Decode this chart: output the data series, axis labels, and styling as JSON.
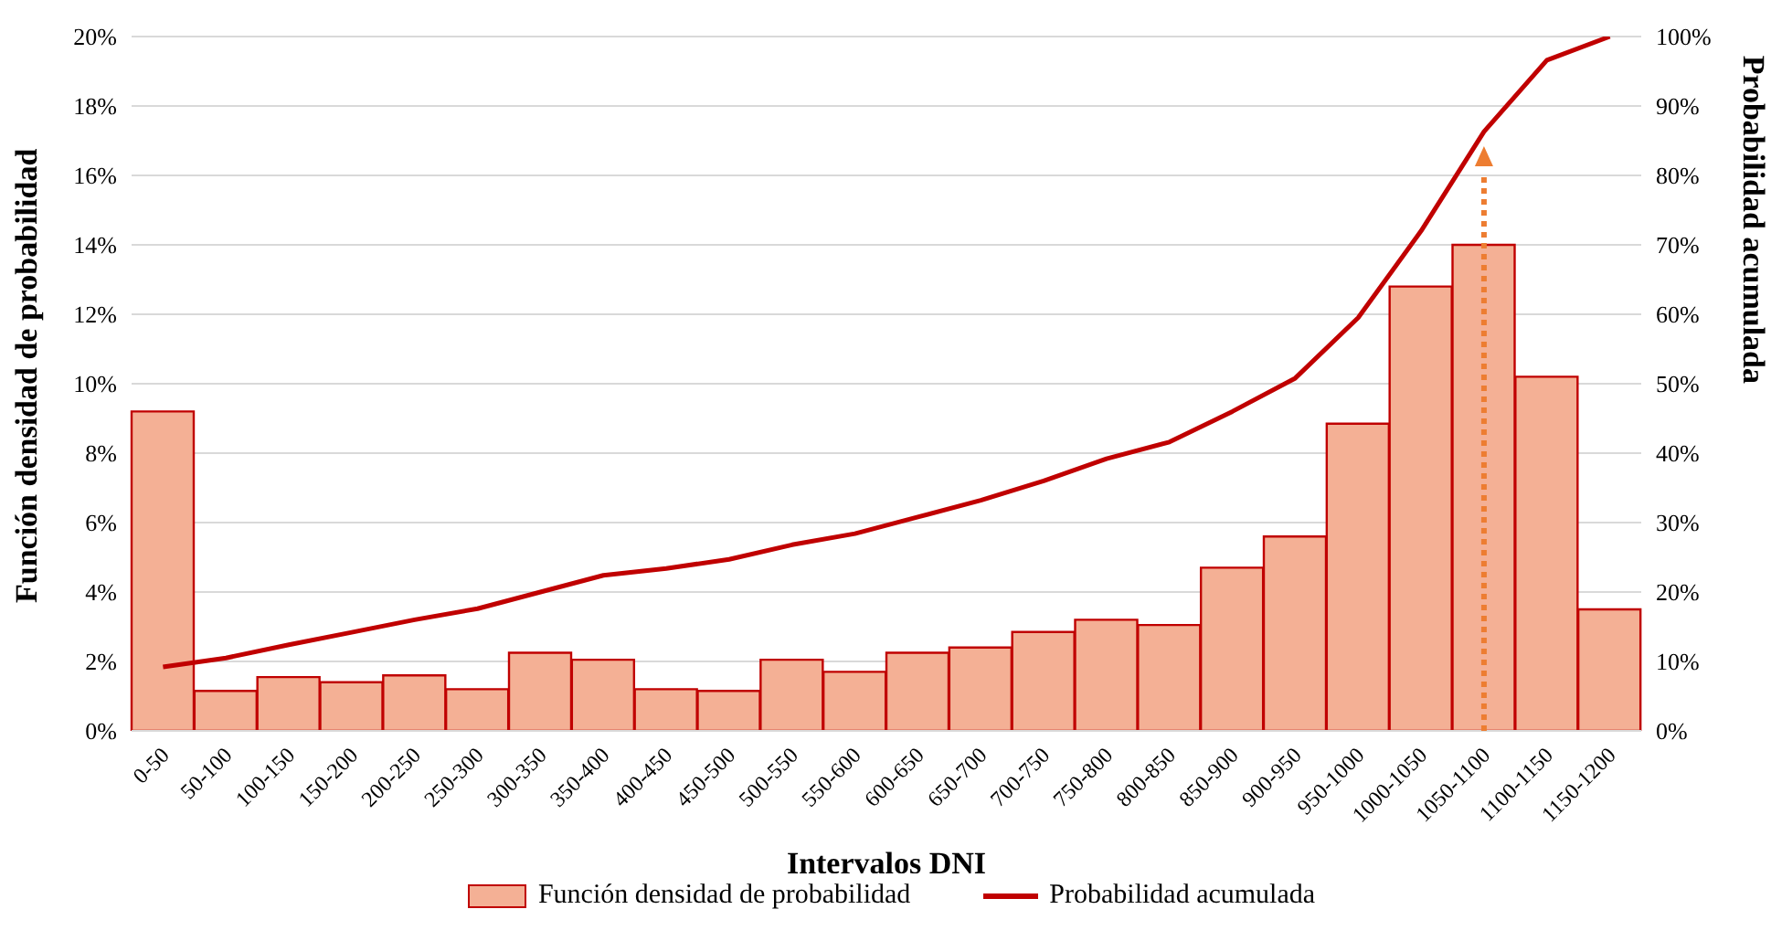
{
  "chart_data": {
    "type": "bar",
    "xlabel": "Intervalos DNI",
    "ylabel": "Función densidad de probabilidad",
    "y2label": "Probabilidad acumulada",
    "categories": [
      "0-50",
      "50-100",
      "100-150",
      "150-200",
      "200-250",
      "250-300",
      "300-350",
      "350-400",
      "400-450",
      "450-500",
      "500-550",
      "550-600",
      "600-650",
      "650-700",
      "700-750",
      "750-800",
      "800-850",
      "850-900",
      "900-950",
      "950-1000",
      "1000-1050",
      "1050-1100",
      "1100-1150",
      "1150-1200"
    ],
    "series": [
      {
        "name": "Función densidad de probabilidad",
        "color": "#f4b095",
        "values": [
          9.2,
          1.15,
          1.55,
          1.4,
          1.6,
          1.2,
          2.25,
          2.05,
          1.2,
          1.15,
          2.05,
          1.7,
          2.25,
          2.4,
          2.85,
          3.2,
          3.05,
          4.7,
          5.6,
          8.85,
          12.8,
          14.0,
          10.2,
          3.5
        ]
      },
      {
        "name": "Probabilidad acumulada",
        "type": "line",
        "axis": "y2",
        "color": "#c00000",
        "values": [
          9.2,
          10.5,
          12.4,
          14.2,
          16,
          17.6,
          20,
          22.4,
          23.4,
          24.7,
          26.8,
          28.4,
          30.8,
          33.2,
          36,
          39.2,
          41.6,
          46,
          50.8,
          59.5,
          72,
          86.3,
          96.6,
          100
        ]
      }
    ],
    "ylim": [
      0,
      20
    ],
    "yticks": [
      {
        "value": 0,
        "label": "0%"
      },
      {
        "value": 2,
        "label": "2%"
      },
      {
        "value": 4,
        "label": "4%"
      },
      {
        "value": 6,
        "label": "6%"
      },
      {
        "value": 8,
        "label": "8%"
      },
      {
        "value": 10,
        "label": "10%"
      },
      {
        "value": 12,
        "label": "12%"
      },
      {
        "value": 14,
        "label": "14%"
      },
      {
        "value": 16,
        "label": "16%"
      },
      {
        "value": 18,
        "label": "18%"
      },
      {
        "value": 20,
        "label": "20%"
      }
    ],
    "y2lim": [
      0,
      100
    ],
    "y2ticks": [
      {
        "value": 0,
        "label": "0%"
      },
      {
        "value": 10,
        "label": "10%"
      },
      {
        "value": 20,
        "label": "20%"
      },
      {
        "value": 30,
        "label": "30%"
      },
      {
        "value": 40,
        "label": "40%"
      },
      {
        "value": 50,
        "label": "50%"
      },
      {
        "value": 60,
        "label": "60%"
      },
      {
        "value": 70,
        "label": "70%"
      },
      {
        "value": 80,
        "label": "80%"
      },
      {
        "value": 90,
        "label": "90%"
      },
      {
        "value": 100,
        "label": "100%"
      }
    ],
    "grid": "y",
    "legend": "bottom",
    "marker": "none",
    "line_style": "solid"
  }
}
